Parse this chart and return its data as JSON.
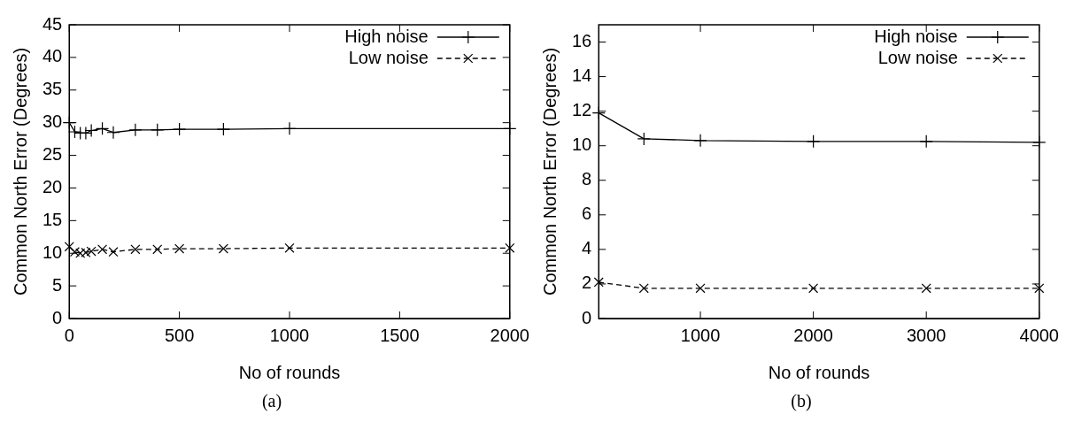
{
  "chart_data": [
    {
      "type": "line",
      "xlabel": "No of rounds",
      "ylabel": "Common North Error (Degrees)",
      "annotations": [
        "(a)"
      ],
      "xlim": [
        0,
        2000
      ],
      "xticks": [
        0,
        500,
        1000,
        1500,
        2000
      ],
      "ylim": [
        0,
        45
      ],
      "yticks": [
        0,
        5,
        10,
        15,
        20,
        25,
        30,
        35,
        40,
        45
      ],
      "grid": false,
      "legend": "top right",
      "series": [
        {
          "name": "High noise",
          "color": "#000000",
          "line_style": "solid",
          "marker": "cross",
          "x": [
            0,
            25,
            50,
            75,
            100,
            150,
            200,
            300,
            400,
            500,
            700,
            1000,
            2000
          ],
          "values": [
            30.0,
            28.6,
            28.4,
            28.4,
            28.8,
            29.1,
            28.5,
            28.9,
            28.9,
            29.0,
            29.0,
            29.1,
            29.1
          ]
        },
        {
          "name": "Low noise",
          "color": "#000000",
          "line_style": "dashed",
          "marker": "x",
          "x": [
            0,
            25,
            50,
            75,
            100,
            150,
            200,
            300,
            400,
            500,
            700,
            1000,
            2000
          ],
          "values": [
            11.0,
            10.2,
            10.0,
            10.1,
            10.3,
            10.6,
            10.2,
            10.6,
            10.6,
            10.7,
            10.7,
            10.8,
            10.8
          ]
        }
      ]
    },
    {
      "type": "line",
      "xlabel": "No of rounds",
      "ylabel": "Common North Error (Degrees)",
      "annotations": [
        "(b)"
      ],
      "xlim": [
        100,
        4000
      ],
      "xticks": [
        1000,
        2000,
        3000,
        4000
      ],
      "ylim": [
        0,
        17
      ],
      "yticks": [
        0,
        2,
        4,
        6,
        8,
        10,
        12,
        14,
        16
      ],
      "grid": false,
      "legend": "top right",
      "series": [
        {
          "name": "High noise",
          "color": "#000000",
          "line_style": "solid",
          "marker": "cross",
          "x": [
            100,
            500,
            1000,
            2000,
            3000,
            4000
          ],
          "values": [
            11.9,
            10.4,
            10.3,
            10.25,
            10.25,
            10.2
          ]
        },
        {
          "name": "Low noise",
          "color": "#000000",
          "line_style": "dashed",
          "marker": "x",
          "x": [
            100,
            500,
            1000,
            2000,
            3000,
            4000
          ],
          "values": [
            2.1,
            1.75,
            1.75,
            1.75,
            1.75,
            1.75
          ]
        }
      ]
    }
  ]
}
